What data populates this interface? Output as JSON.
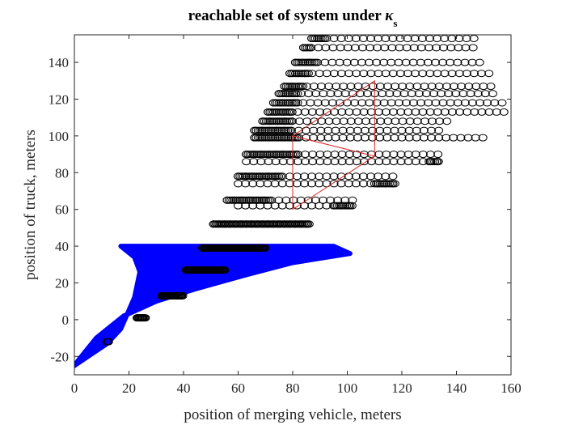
{
  "chart_data": {
    "type": "scatter",
    "title": "reachable set of system under",
    "title_symbol": "κ",
    "title_subscript": "s",
    "xlabel": "position of merging vehicle, meters",
    "ylabel": "position of truck, meters",
    "xlim": [
      0,
      160
    ],
    "ylim": [
      -30,
      155
    ],
    "xticks": [
      0,
      20,
      40,
      60,
      80,
      100,
      120,
      140,
      160
    ],
    "yticks": [
      -20,
      0,
      20,
      40,
      60,
      80,
      100,
      120,
      140
    ],
    "grid": false,
    "colors": {
      "region": "#0000ff",
      "markers": "#000000",
      "box": "#d62728",
      "axes": "#262626"
    },
    "reachable_region": [
      [
        0,
        -25
      ],
      [
        12,
        -13
      ],
      [
        17,
        -5
      ],
      [
        22,
        12
      ],
      [
        24,
        26
      ],
      [
        22,
        34
      ],
      [
        17,
        40
      ],
      [
        40,
        40
      ],
      [
        95,
        40
      ],
      [
        101,
        36
      ],
      [
        80,
        31
      ],
      [
        62,
        24
      ],
      [
        45,
        17
      ],
      [
        30,
        10
      ],
      [
        18,
        2
      ],
      [
        8,
        -10
      ],
      [
        2,
        -21
      ]
    ],
    "safe_box": {
      "polygon": [
        [
          80,
          60
        ],
        [
          80,
          100
        ],
        [
          110,
          130
        ],
        [
          110,
          89
        ],
        [
          80,
          60
        ]
      ],
      "inner": [
        [
          80,
          100
        ],
        [
          110,
          89
        ]
      ]
    },
    "marker_rows": [
      {
        "y": 153,
        "x_start": 87,
        "x_end": 148,
        "dense_start": 87,
        "dense_end": 92,
        "spacing": 2.7
      },
      {
        "y": 148,
        "x_start": 84,
        "x_end": 148,
        "dense_start": 84,
        "dense_end": 87,
        "spacing": 2.7
      },
      {
        "y": 140,
        "x_start": 81,
        "x_end": 150,
        "dense_start": 81,
        "dense_end": 89,
        "spacing": 2.7
      },
      {
        "y": 134,
        "x_start": 79,
        "x_end": 152,
        "dense_start": 79,
        "dense_end": 86,
        "spacing": 2.7
      },
      {
        "y": 127,
        "x_start": 77,
        "x_end": 153,
        "dense_start": 77,
        "dense_end": 84,
        "spacing": 2.7
      },
      {
        "y": 123,
        "x_start": 75,
        "x_end": 155,
        "dense_start": 75,
        "dense_end": 82,
        "spacing": 2.7
      },
      {
        "y": 118,
        "x_start": 73,
        "x_end": 157,
        "dense_start": 73,
        "dense_end": 82,
        "spacing": 2.7
      },
      {
        "y": 113,
        "x_start": 71,
        "x_end": 159,
        "dense_start": 71,
        "dense_end": 80,
        "spacing": 2.7
      },
      {
        "y": 108,
        "x_start": 69,
        "x_end": 137,
        "dense_start": 69,
        "dense_end": 80,
        "spacing": 2.7
      },
      {
        "y": 103,
        "x_start": 66,
        "x_end": 135,
        "dense_start": 66,
        "dense_end": 80,
        "spacing": 2.7
      },
      {
        "y": 99,
        "x_start": 66,
        "x_end": 150,
        "dense_start": 66,
        "dense_end": 82,
        "spacing": 2.7
      },
      {
        "y": 90,
        "x_start": 63,
        "x_end": 134,
        "dense_start": 63,
        "dense_end": 82,
        "spacing": 2.7
      },
      {
        "y": 86,
        "x_start": 63,
        "x_end": 134,
        "dense_start": 130,
        "dense_end": 134,
        "spacing": 2.7
      },
      {
        "y": 78,
        "x_start": 60,
        "x_end": 118,
        "dense_start": 60,
        "dense_end": 76,
        "spacing": 2.7
      },
      {
        "y": 74,
        "x_start": 60,
        "x_end": 118,
        "dense_start": 110,
        "dense_end": 118,
        "spacing": 2.7
      },
      {
        "y": 65,
        "x_start": 56,
        "x_end": 102,
        "dense_start": 56,
        "dense_end": 72,
        "spacing": 2.7
      },
      {
        "y": 62,
        "x_start": 60,
        "x_end": 102,
        "dense_start": 95,
        "dense_end": 102,
        "spacing": 2.7
      },
      {
        "y": 52,
        "x_start": 51,
        "x_end": 86,
        "dense_start": 51,
        "dense_end": 86,
        "spacing": 2.0
      },
      {
        "y": 39,
        "x_start": 47,
        "x_end": 70,
        "dense_start": 47,
        "dense_end": 70,
        "spacing": 1.6
      },
      {
        "y": 27,
        "x_start": 41,
        "x_end": 55,
        "dense_start": 41,
        "dense_end": 55,
        "spacing": 1.4
      },
      {
        "y": 13,
        "x_start": 32,
        "x_end": 40,
        "dense_start": 32,
        "dense_end": 40,
        "spacing": 1.2
      },
      {
        "y": 1,
        "x_start": 23,
        "x_end": 26,
        "dense_start": 23,
        "dense_end": 26,
        "spacing": 1.0
      },
      {
        "y": -12,
        "x_start": 12,
        "x_end": 12.5,
        "dense_start": 12,
        "dense_end": 12.5,
        "spacing": 0.5
      }
    ]
  }
}
